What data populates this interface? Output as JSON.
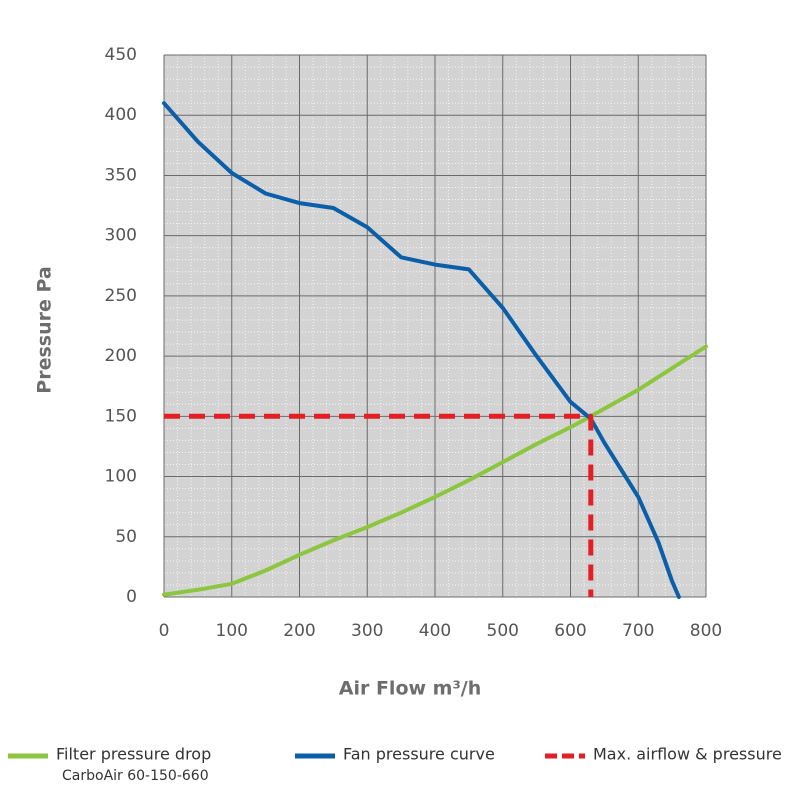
{
  "chart_data": {
    "type": "line",
    "xlabel": "Air Flow m³/h",
    "ylabel": "Pressure Pa",
    "xlim": [
      0,
      800
    ],
    "xticks": [
      0,
      100,
      200,
      300,
      400,
      500,
      600,
      700,
      800
    ],
    "ylim": [
      0,
      450
    ],
    "yticks": [
      0,
      50,
      100,
      150,
      200,
      250,
      300,
      350,
      400,
      450
    ],
    "grid": true,
    "minor_grid": true,
    "series": [
      {
        "name": "Filter pressure drop",
        "legend_note": "CarboAir 60-150-660",
        "color": "#8cc63f",
        "style": "solid",
        "x": [
          0,
          50,
          100,
          150,
          200,
          250,
          300,
          350,
          400,
          450,
          500,
          550,
          600,
          630,
          700,
          750,
          800
        ],
        "values": [
          2,
          6,
          11,
          22,
          35,
          47,
          58,
          70,
          83,
          97,
          112,
          127,
          141,
          150,
          172,
          190,
          208
        ]
      },
      {
        "name": "Fan pressure curve",
        "color": "#0a5fa8",
        "style": "solid",
        "x": [
          0,
          50,
          100,
          150,
          200,
          250,
          300,
          350,
          400,
          450,
          500,
          550,
          600,
          630,
          650,
          700,
          730,
          750,
          760
        ],
        "values": [
          410,
          378,
          352,
          335,
          327,
          323,
          307,
          282,
          276,
          272,
          240,
          200,
          162,
          148,
          128,
          83,
          45,
          13,
          0
        ]
      },
      {
        "name": "Max. airflow & pressure",
        "color": "#e31e24",
        "style": "dashed",
        "x": [
          0,
          630,
          630
        ],
        "values": [
          150,
          150,
          0
        ]
      }
    ]
  }
}
